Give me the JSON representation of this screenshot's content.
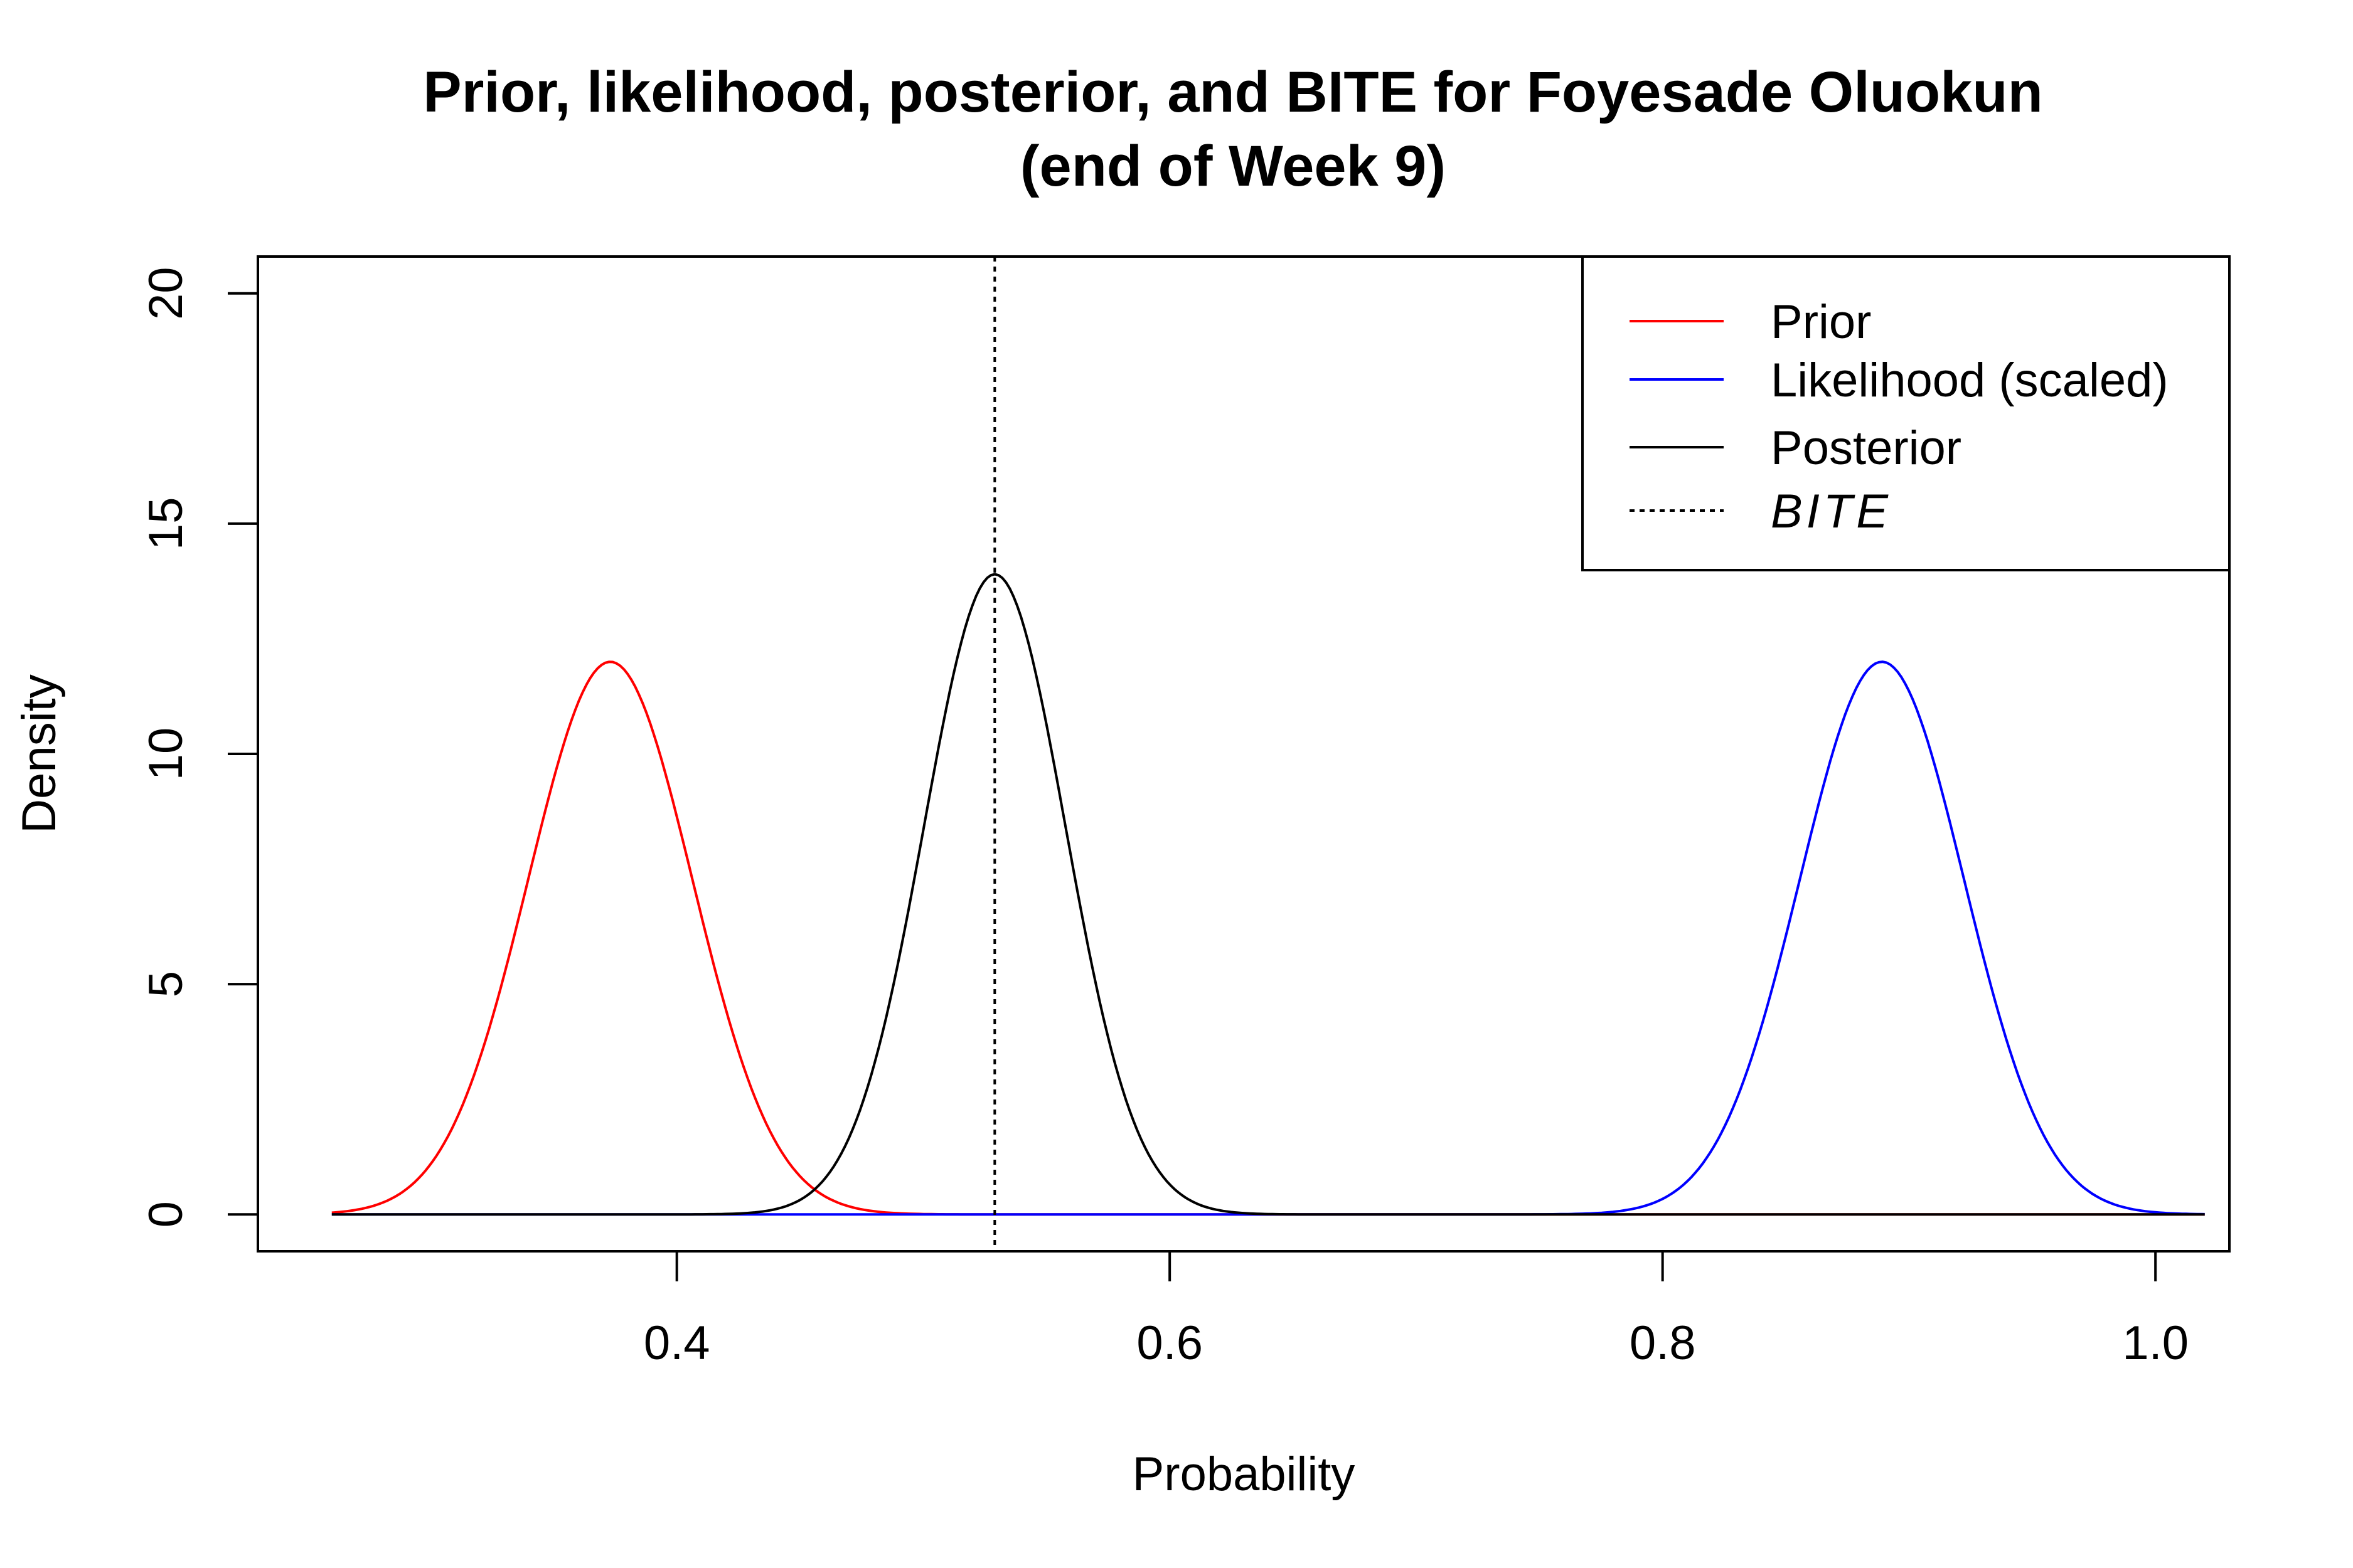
{
  "chart_data": {
    "type": "line",
    "title_lines": [
      "Prior, likelihood, posterior, and BITE for Foyesade Oluokun",
      "(end of Week 9)"
    ],
    "xlabel": "Probability",
    "ylabel": "Density",
    "xlim": [
      0.23,
      1.03
    ],
    "ylim": [
      -0.8,
      20.8
    ],
    "x_ticks": [
      0.4,
      0.6,
      0.8,
      1.0
    ],
    "x_tick_labels": [
      "0.4",
      "0.6",
      "0.8",
      "1.0"
    ],
    "y_ticks": [
      0,
      5,
      10,
      15,
      20
    ],
    "y_tick_labels": [
      "0",
      "5",
      "10",
      "15",
      "20"
    ],
    "grid": false,
    "legend_position": "top-right",
    "series": [
      {
        "name": "Prior",
        "color": "#ff0000",
        "style": "solid",
        "x_range": [
          0.26,
          1.02
        ],
        "peak_x": 0.373,
        "peak_y": 12.0,
        "sd": 0.0333
      },
      {
        "name": "Likelihood (scaled)",
        "color": "#0000ff",
        "style": "solid",
        "x_range": [
          0.26,
          1.02
        ],
        "peak_x": 0.889,
        "peak_y": 12.0,
        "sd": 0.0333
      },
      {
        "name": "Posterior",
        "color": "#000000",
        "style": "solid",
        "x_range": [
          0.26,
          1.02
        ],
        "peak_x": 0.529,
        "peak_y": 13.9,
        "sd": 0.0287
      },
      {
        "name": "BITE",
        "color": "#000000",
        "style": "dotted",
        "vline_x": 0.529
      }
    ]
  }
}
